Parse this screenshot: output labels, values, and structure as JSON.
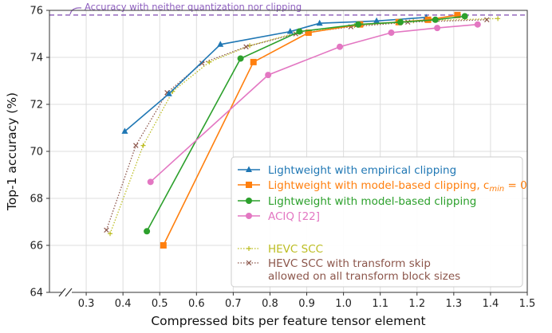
{
  "chart_data": {
    "type": "line",
    "title": "",
    "xlabel": "Compressed bits per feature tensor element",
    "ylabel": "Top-1 accuracy (%)",
    "xlim": [
      0.2,
      1.5
    ],
    "ylim": [
      64,
      76
    ],
    "xticks": [
      "0.3",
      "0.4",
      "0.5",
      "0.6",
      "0.7",
      "0.8",
      "0.9",
      "1.0",
      "1.1",
      "1.2",
      "1.3",
      "1.4",
      "1.5"
    ],
    "yticks": [
      "64",
      "66",
      "68",
      "70",
      "72",
      "74",
      "76"
    ],
    "grid": true,
    "axis_break": "x-axis broken near origin",
    "legend_position": "lower-right",
    "reference_line": {
      "y": 75.8,
      "label": "Accuracy with neither quantization nor clipping",
      "color": "#9467bd"
    },
    "series": [
      {
        "name": "Lightweight with empirical clipping",
        "color": "#1f77b4",
        "marker": "triangle",
        "line": "solid",
        "points": [
          [
            0.405,
            70.85
          ],
          [
            0.525,
            72.45
          ],
          [
            0.665,
            74.55
          ],
          [
            0.855,
            75.1
          ],
          [
            0.935,
            75.45
          ],
          [
            1.09,
            75.55
          ],
          [
            1.225,
            75.7
          ]
        ]
      },
      {
        "name": "Lightweight with model-based clipping, c_min = 0",
        "color": "#ff7f0e",
        "marker": "square",
        "line": "solid",
        "points": [
          [
            0.51,
            66.0
          ],
          [
            0.755,
            73.8
          ],
          [
            0.905,
            75.05
          ],
          [
            1.045,
            75.4
          ],
          [
            1.15,
            75.5
          ],
          [
            1.23,
            75.6
          ],
          [
            1.31,
            75.8
          ]
        ]
      },
      {
        "name": "Lightweight with model-based clipping",
        "color": "#2ca02c",
        "marker": "circle",
        "line": "solid",
        "points": [
          [
            0.465,
            66.6
          ],
          [
            0.72,
            73.95
          ],
          [
            0.88,
            75.1
          ],
          [
            1.04,
            75.4
          ],
          [
            1.155,
            75.5
          ],
          [
            1.25,
            75.6
          ],
          [
            1.33,
            75.75
          ]
        ]
      },
      {
        "name": "ACIQ [22]",
        "color": "#e377c2",
        "marker": "circle",
        "line": "solid",
        "points": [
          [
            0.475,
            68.7
          ],
          [
            0.795,
            73.25
          ],
          [
            0.99,
            74.45
          ],
          [
            1.13,
            75.05
          ],
          [
            1.255,
            75.25
          ],
          [
            1.365,
            75.4
          ]
        ]
      },
      {
        "name": "HEVC SCC",
        "color": "#bcbd22",
        "marker": "plus",
        "line": "dotted",
        "points": [
          [
            0.365,
            66.5
          ],
          [
            0.455,
            70.25
          ],
          [
            0.535,
            72.55
          ],
          [
            0.635,
            73.8
          ],
          [
            0.745,
            74.5
          ],
          [
            0.885,
            75.1
          ],
          [
            1.03,
            75.35
          ],
          [
            1.19,
            75.55
          ],
          [
            1.42,
            75.65
          ]
        ]
      },
      {
        "name": "HEVC SCC with transform skip allowed on all transform block sizes",
        "color": "#8c564b",
        "marker": "x",
        "line": "dotted",
        "points": [
          [
            0.355,
            66.65
          ],
          [
            0.435,
            70.25
          ],
          [
            0.52,
            72.5
          ],
          [
            0.615,
            73.75
          ],
          [
            0.735,
            74.45
          ],
          [
            0.87,
            75.0
          ],
          [
            1.02,
            75.3
          ],
          [
            1.175,
            75.5
          ],
          [
            1.39,
            75.6
          ]
        ]
      }
    ],
    "legend": [
      {
        "lines": [
          "Lightweight with empirical clipping"
        ],
        "color": "#1f77b4",
        "marker": "triangle",
        "line": "solid"
      },
      {
        "lines": [
          "Lightweight with model-based clipping, c",
          "min",
          " = 0"
        ],
        "color": "#ff7f0e",
        "marker": "square",
        "line": "solid",
        "has_sub": true
      },
      {
        "lines": [
          "Lightweight with model-based clipping"
        ],
        "color": "#2ca02c",
        "marker": "circle",
        "line": "solid"
      },
      {
        "lines": [
          "ACIQ [22]"
        ],
        "color": "#e377c2",
        "marker": "circle",
        "line": "solid"
      },
      {
        "lines": [
          "HEVC SCC"
        ],
        "color": "#bcbd22",
        "marker": "plus",
        "line": "dotted"
      },
      {
        "lines": [
          "HEVC SCC with transform skip",
          "allowed on all transform block sizes"
        ],
        "color": "#8c564b",
        "marker": "x",
        "line": "dotted"
      }
    ]
  }
}
